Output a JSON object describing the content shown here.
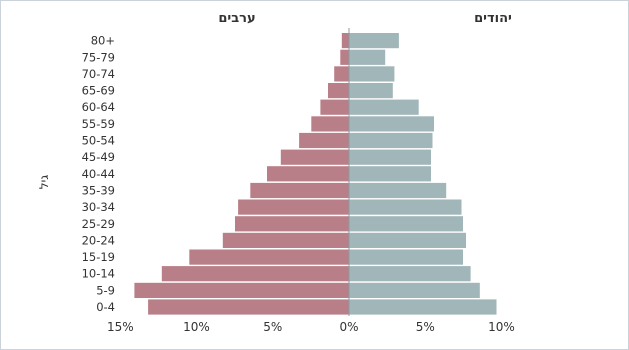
{
  "chart_data": {
    "type": "bar",
    "orientation": "horizontal-population-pyramid",
    "categories": [
      "0-4",
      "5-9",
      "10-14",
      "15-19",
      "20-24",
      "25-29",
      "30-34",
      "35-39",
      "40-44",
      "45-49",
      "50-54",
      "55-59",
      "60-64",
      "65-69",
      "70-74",
      "75-79",
      "80+"
    ],
    "series": [
      {
        "name": "ערבים",
        "side": "left",
        "color": "#b97f89",
        "values": [
          13.2,
          14.1,
          12.3,
          10.5,
          8.3,
          7.5,
          7.3,
          6.5,
          5.4,
          4.5,
          3.3,
          2.5,
          1.9,
          1.4,
          1.0,
          0.6,
          0.5
        ]
      },
      {
        "name": "יהודים",
        "side": "right",
        "color": "#a1b6b8",
        "values": [
          9.7,
          8.6,
          8.0,
          7.5,
          7.7,
          7.5,
          7.4,
          6.4,
          5.4,
          5.4,
          5.5,
          5.6,
          4.6,
          2.9,
          3.0,
          2.4,
          3.3
        ]
      }
    ],
    "xlim": [
      -15,
      10
    ],
    "xticks": [
      "15%",
      "10%",
      "5%",
      "0%",
      "5%",
      "10%"
    ],
    "xtick_values": [
      -15,
      -10,
      -5,
      0,
      5,
      10
    ],
    "ylabel": "גיל",
    "left_label": "ערבים",
    "right_label": "יהודים"
  }
}
